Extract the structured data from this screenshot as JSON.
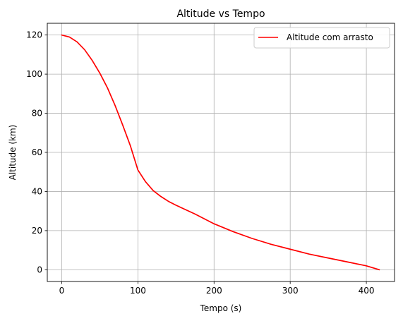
{
  "chart_data": {
    "type": "line",
    "title": "Altitude vs Tempo",
    "xlabel": "Tempo (s)",
    "ylabel": "Altitude (km)",
    "xlim": [
      -19,
      437
    ],
    "ylim": [
      -6,
      126
    ],
    "xticks": [
      0,
      100,
      200,
      300,
      400
    ],
    "yticks": [
      0,
      20,
      40,
      60,
      80,
      100,
      120
    ],
    "grid": true,
    "legend_position": "top-right",
    "series": [
      {
        "name": "Altitude com arrasto",
        "color": "#ff0000",
        "x": [
          0,
          10,
          20,
          30,
          40,
          50,
          60,
          70,
          80,
          90,
          100,
          110,
          120,
          130,
          140,
          150,
          175,
          200,
          225,
          250,
          275,
          300,
          325,
          350,
          375,
          400,
          417
        ],
        "y": [
          120,
          119,
          116.5,
          112.5,
          107,
          100.5,
          93,
          84,
          74,
          63.5,
          51,
          45,
          40.5,
          37.5,
          35,
          33,
          28.5,
          23.5,
          19.5,
          16,
          13,
          10.5,
          8,
          6,
          4,
          2,
          0
        ]
      }
    ]
  }
}
